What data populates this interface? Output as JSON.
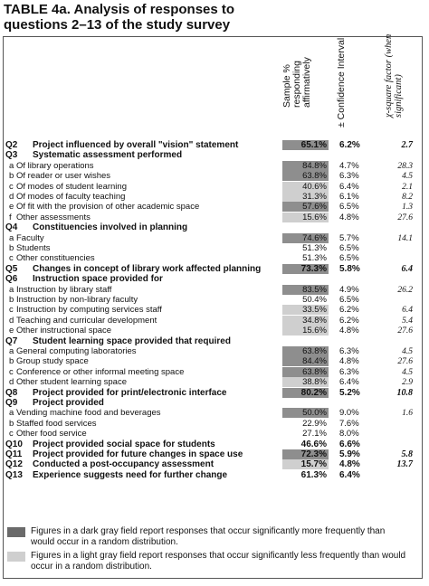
{
  "title_line1": "TABLE 4a. Analysis of responses to",
  "title_line2": "questions 2–13 of the study survey",
  "headers": {
    "sample": "Sample % responding affirmatively",
    "ci": "± Confidence Interval",
    "chi": "χ-square factor (when significant)"
  },
  "rows": [
    {
      "num": "Q2",
      "label": "Project influenced by overall \"vision\" statement",
      "pct": "65.1%",
      "ci": "6.2%",
      "chi": "2.7",
      "shade": "dark",
      "q": true
    },
    {
      "num": "Q3",
      "label": "Systematic assessment performed",
      "pct": "",
      "ci": "",
      "chi": "",
      "shade": "",
      "q": true
    },
    {
      "num": "a",
      "label": "Of library operations",
      "pct": "84.8%",
      "ci": "4.7%",
      "chi": "28.3",
      "shade": "dark"
    },
    {
      "num": "b",
      "label": "Of reader or user wishes",
      "pct": "63.8%",
      "ci": "6.3%",
      "chi": "4.5",
      "shade": "dark"
    },
    {
      "num": "c",
      "label": "Of modes of student learning",
      "pct": "40.6%",
      "ci": "6.4%",
      "chi": "2.1",
      "shade": "light"
    },
    {
      "num": "d",
      "label": "Of modes of faculty teaching",
      "pct": "31.3%",
      "ci": "6.1%",
      "chi": "8.2",
      "shade": "light"
    },
    {
      "num": "e",
      "label": "Of fit with the provision of other academic space",
      "pct": "57.6%",
      "ci": "6.5%",
      "chi": "1.3",
      "shade": "dark"
    },
    {
      "num": "f",
      "label": "Other assessments",
      "pct": "15.6%",
      "ci": "4.8%",
      "chi": "27.6",
      "shade": "light"
    },
    {
      "num": "Q4",
      "label": "Constituencies involved in planning",
      "pct": "",
      "ci": "",
      "chi": "",
      "shade": "",
      "q": true
    },
    {
      "num": "a",
      "label": "Faculty",
      "pct": "74.6%",
      "ci": "5.7%",
      "chi": "14.1",
      "shade": "dark"
    },
    {
      "num": "b",
      "label": "Students",
      "pct": "51.3%",
      "ci": "6.5%",
      "chi": "",
      "shade": ""
    },
    {
      "num": "c",
      "label": "Other constituencies",
      "pct": "51.3%",
      "ci": "6.5%",
      "chi": "",
      "shade": ""
    },
    {
      "num": "Q5",
      "label": "Changes in concept of library work affected planning",
      "pct": "73.3%",
      "ci": "5.8%",
      "chi": "6.4",
      "shade": "dark",
      "q": true
    },
    {
      "num": "Q6",
      "label": "Instruction space provided for",
      "pct": "",
      "ci": "",
      "chi": "",
      "shade": "",
      "q": true
    },
    {
      "num": "a",
      "label": "Instruction by library staff",
      "pct": "83.5%",
      "ci": "4.9%",
      "chi": "26.2",
      "shade": "dark"
    },
    {
      "num": "b",
      "label": "Instruction by non-library faculty",
      "pct": "50.4%",
      "ci": "6.5%",
      "chi": "",
      "shade": ""
    },
    {
      "num": "c",
      "label": "Instruction by computing services staff",
      "pct": "33.5%",
      "ci": "6.2%",
      "chi": "6.4",
      "shade": "light"
    },
    {
      "num": "d",
      "label": "Teaching and curricular development",
      "pct": "34.8%",
      "ci": "6.2%",
      "chi": "5.4",
      "shade": "light"
    },
    {
      "num": "e",
      "label": "Other instructional space",
      "pct": "15.6%",
      "ci": "4.8%",
      "chi": "27.6",
      "shade": "light"
    },
    {
      "num": "Q7",
      "label": "Student learning space provided that required",
      "pct": "",
      "ci": "",
      "chi": "",
      "shade": "",
      "q": true
    },
    {
      "num": "a",
      "label": "General computing laboratories",
      "pct": "63.8%",
      "ci": "6.3%",
      "chi": "4.5",
      "shade": "dark"
    },
    {
      "num": "b",
      "label": "Group study space",
      "pct": "84.4%",
      "ci": "4.8%",
      "chi": "27.6",
      "shade": "dark"
    },
    {
      "num": "c",
      "label": "Conference or other informal meeting space",
      "pct": "63.8%",
      "ci": "6.3%",
      "chi": "4.5",
      "shade": "dark"
    },
    {
      "num": "d",
      "label": "Other student learning space",
      "pct": "38.8%",
      "ci": "6.4%",
      "chi": "2.9",
      "shade": "light"
    },
    {
      "num": "Q8",
      "label": "Project provided for print/electronic interface",
      "pct": "80.2%",
      "ci": "5.2%",
      "chi": "10.8",
      "shade": "dark",
      "q": true
    },
    {
      "num": "Q9",
      "label": "Project provided",
      "pct": "",
      "ci": "",
      "chi": "",
      "shade": "",
      "q": true
    },
    {
      "num": "a",
      "label": "Vending machine food and beverages",
      "pct": "50.0%",
      "ci": "9.0%",
      "chi": "1.6",
      "shade": "dark"
    },
    {
      "num": "b",
      "label": "Staffed food services",
      "pct": "22.9%",
      "ci": "7.6%",
      "chi": "",
      "shade": ""
    },
    {
      "num": "c",
      "label": "Other food service",
      "pct": "27.1%",
      "ci": "8.0%",
      "chi": "",
      "shade": ""
    },
    {
      "num": "Q10",
      "label": "Project provided social space for students",
      "pct": "46.6%",
      "ci": "6.6%",
      "chi": "",
      "shade": "",
      "q": true
    },
    {
      "num": "Q11",
      "label": "Project provided for future changes in space use",
      "pct": "72.3%",
      "ci": "5.9%",
      "chi": "5.8",
      "shade": "dark",
      "q": true
    },
    {
      "num": "Q12",
      "label": "Conducted a post-occupancy assessment",
      "pct": "15.7%",
      "ci": "4.8%",
      "chi": "13.7",
      "shade": "light",
      "q": true
    },
    {
      "num": "Q13",
      "label": "Experience suggests need for further change",
      "pct": "61.3%",
      "ci": "6.4%",
      "chi": "",
      "shade": "",
      "q": true
    }
  ],
  "legend": [
    {
      "shade": "dark",
      "text": "Figures in a dark gray field report responses that occur significantly more frequently than would occur in a random distribution."
    },
    {
      "shade": "light",
      "text": "Figures in a light gray field report responses that occur significantly less frequently than would occur in a random distribution."
    }
  ]
}
